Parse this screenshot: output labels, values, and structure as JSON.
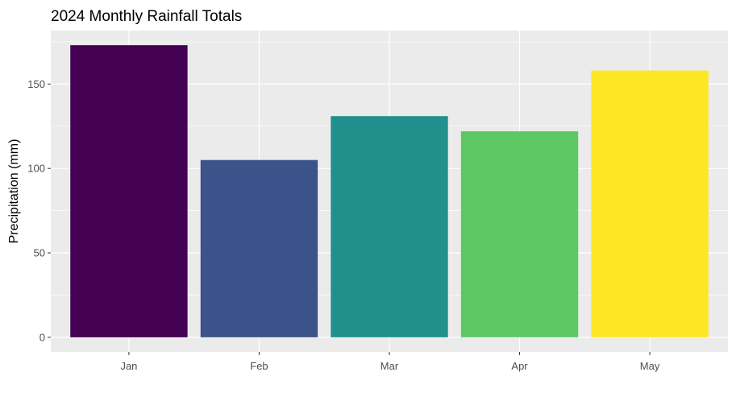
{
  "chart_data": {
    "type": "bar",
    "title": "2024 Monthly Rainfall Totals",
    "xlabel": "",
    "ylabel": "Precipitation (mm)",
    "categories": [
      "Jan",
      "Feb",
      "Mar",
      "Apr",
      "May"
    ],
    "values": [
      173,
      105,
      131,
      122,
      158
    ],
    "colors": [
      "#440154",
      "#3B528B",
      "#21908C",
      "#5DC863",
      "#FDE725"
    ],
    "ylim": [
      -8.65,
      181.65
    ],
    "yticks": [
      0,
      50,
      100,
      150
    ],
    "grid": true,
    "legend": "none",
    "panel_background": "#EBEBEB",
    "grid_color": "#FFFFFF"
  }
}
